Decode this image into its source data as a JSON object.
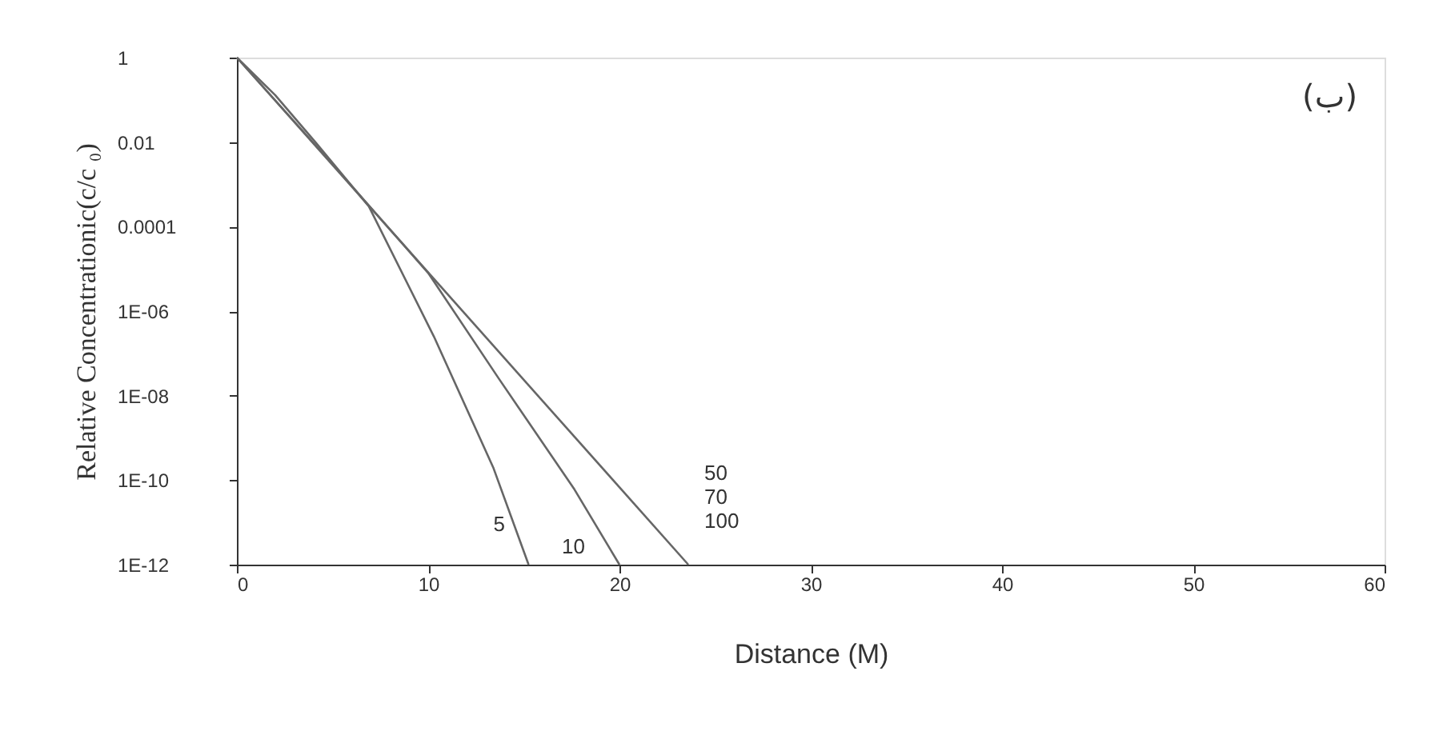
{
  "chart_data": {
    "type": "line",
    "xlabel": "Distance (M)",
    "ylabel": "Relative Concentrationic(c/c ₀)",
    "annotations": [
      "(ب)"
    ],
    "log": "y",
    "grid": false,
    "marker": "none",
    "line_style": "solid",
    "xlim": [
      0,
      60
    ],
    "xticks": [
      0,
      10,
      20,
      30,
      40,
      50,
      60
    ],
    "ylim": [
      1e-12,
      1
    ],
    "yticks": [
      1,
      0.01,
      0.0001,
      {
        "value": 1e-06,
        "label": "1E-06"
      },
      {
        "value": 1e-08,
        "label": "1E-08"
      },
      {
        "value": 1e-10,
        "label": "1E-10"
      },
      {
        "value": 1e-12,
        "label": "1E-12"
      }
    ],
    "series": [
      {
        "name": "5",
        "color": "#666666",
        "x": [
          0,
          2,
          4.1,
          6.9,
          10.3,
          13.4,
          15.25
        ],
        "values": [
          1,
          0.13,
          0.01,
          0.0003,
          2.5e-07,
          2e-10,
          1e-12
        ]
      },
      {
        "name": "10",
        "color": "#666666",
        "x": [
          0,
          5,
          10,
          13.7,
          17.65,
          20
        ],
        "values": [
          1,
          0.003,
          8e-06,
          2.5e-08,
          6e-11,
          1e-12
        ]
      },
      {
        "name": "50\n70\n100",
        "color": "#666666",
        "x": [
          0,
          23.6
        ],
        "values": [
          1,
          1e-12
        ]
      }
    ]
  }
}
